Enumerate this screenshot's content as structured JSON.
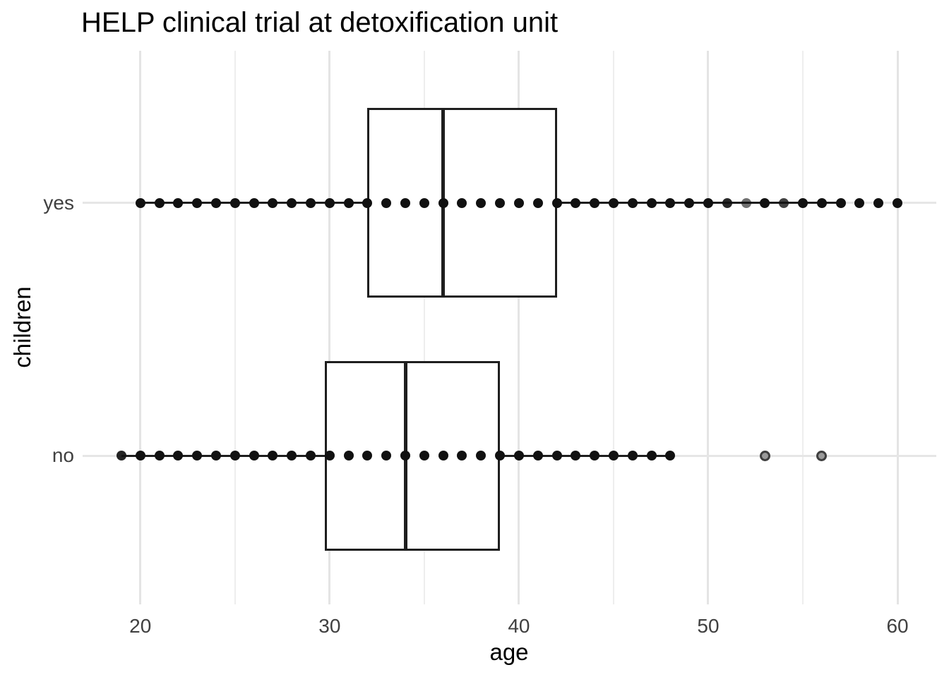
{
  "title": "HELP clinical trial at detoxification unit",
  "x_axis": {
    "label": "age",
    "tick_labels": [
      "20",
      "30",
      "40",
      "50",
      "60"
    ]
  },
  "y_axis": {
    "label": "children",
    "category_labels": [
      "yes",
      "no"
    ]
  },
  "chart_data": {
    "type": "boxplot",
    "orientation": "horizontal",
    "title": "HELP clinical trial at detoxification unit",
    "xlabel": "age",
    "ylabel": "children",
    "xlim": [
      16.95,
      62.05
    ],
    "x_major_ticks": [
      20,
      30,
      40,
      50,
      60
    ],
    "x_minor_ticks": [
      25,
      35,
      45,
      55
    ],
    "grid": true,
    "legend": false,
    "categories": [
      "yes",
      "no"
    ],
    "series": [
      {
        "name": "yes",
        "box": {
          "whisker_low": 20,
          "q1": 32,
          "median": 36,
          "q3": 42,
          "whisker_high": 57
        },
        "points": [
          20,
          21,
          22,
          23,
          24,
          25,
          26,
          27,
          28,
          29,
          30,
          31,
          32,
          33,
          34,
          35,
          36,
          37,
          38,
          39,
          40,
          41,
          42,
          43,
          44,
          45,
          46,
          47,
          48,
          49,
          50,
          51,
          52,
          53,
          54,
          55,
          56,
          57,
          58,
          59,
          60
        ],
        "point_opacity_overrides": {
          "51": 0.9,
          "52": 0.6,
          "54": 0.8
        },
        "ring_outliers": []
      },
      {
        "name": "no",
        "box": {
          "whisker_low": 19,
          "q1": 29.75,
          "median": 34,
          "q3": 39,
          "whisker_high": 48
        },
        "points": [
          19,
          20,
          21,
          22,
          23,
          24,
          25,
          26,
          27,
          28,
          29,
          30,
          31,
          32,
          33,
          34,
          35,
          36,
          37,
          38,
          39,
          40,
          41,
          42,
          43,
          44,
          45,
          46,
          47,
          48
        ],
        "point_opacity_overrides": {
          "19": 0.92
        },
        "ring_outliers": [
          53,
          56
        ]
      }
    ],
    "colors": {
      "box_stroke": "#1e1e1e",
      "point": "#111111",
      "outlier_fill": "#9a9a9a",
      "outlier_stroke": "#3f3f3f",
      "grid_major": "#e4e4e4",
      "grid_minor": "#eeeeee",
      "axis_text": "#404040",
      "title_text": "#000000"
    }
  }
}
